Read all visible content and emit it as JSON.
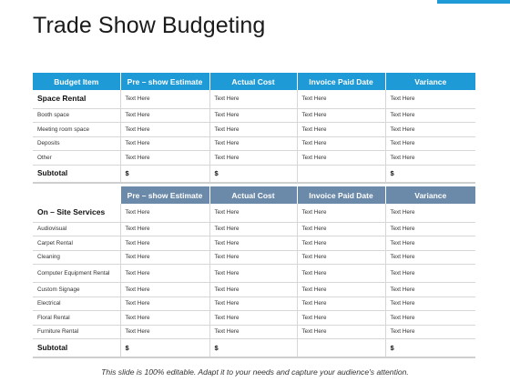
{
  "title": "Trade Show Budgeting",
  "colors": {
    "accent": "#1e9ad6",
    "header_secondary": "#6b89a8"
  },
  "table1": {
    "headers": [
      "Budget Item",
      "Pre – show Estimate",
      "Actual Cost",
      "Invoice Paid Date",
      "Variance"
    ],
    "section": "Space Rental",
    "section_cells": [
      "Text Here",
      "Text Here",
      "Text Here",
      "Text Here"
    ],
    "rows": [
      {
        "label": "Booth space",
        "cells": [
          "Text Here",
          "Text Here",
          "Text Here",
          "Text Here"
        ]
      },
      {
        "label": "Meeting room space",
        "cells": [
          "Text Here",
          "Text Here",
          "Text Here",
          "Text Here"
        ]
      },
      {
        "label": "Deposits",
        "cells": [
          "Text Here",
          "Text Here",
          "Text Here",
          "Text Here"
        ]
      },
      {
        "label": "Other",
        "cells": [
          "Text Here",
          "Text Here",
          "Text Here",
          "Text Here"
        ]
      }
    ],
    "subtotal": {
      "label": "Subtotal",
      "cells": [
        "$",
        "$",
        "",
        "$"
      ]
    }
  },
  "table2": {
    "headers": [
      "Pre – show Estimate",
      "Actual Cost",
      "Invoice Paid Date",
      "Variance"
    ],
    "section": "On – Site Services",
    "section_cells": [
      "Text Here",
      "Text Here",
      "Text Here",
      "Text Here"
    ],
    "rows": [
      {
        "label": "Audiovisual",
        "cells": [
          "Text Here",
          "Text Here",
          "Text Here",
          "Text Here"
        ]
      },
      {
        "label": "Carpet Rental",
        "cells": [
          "Text Here",
          "Text Here",
          "Text Here",
          "Text Here"
        ]
      },
      {
        "label": "Cleaning",
        "cells": [
          "Text Here",
          "Text Here",
          "Text Here",
          "Text Here"
        ]
      },
      {
        "label": "Computer Equipment Rental",
        "cells": [
          "Text Here",
          "Text Here",
          "Text Here",
          "Text Here"
        ]
      },
      {
        "label": "Custom Signage",
        "cells": [
          "Text Here",
          "Text Here",
          "Text Here",
          "Text Here"
        ]
      },
      {
        "label": "Electrical",
        "cells": [
          "Text Here",
          "Text Here",
          "Text Here",
          "Text Here"
        ]
      },
      {
        "label": "Floral Rental",
        "cells": [
          "Text Here",
          "Text Here",
          "Text Here",
          "Text Here"
        ]
      },
      {
        "label": "Furniture Rental",
        "cells": [
          "Text Here",
          "Text Here",
          "Text Here",
          "Text Here"
        ]
      }
    ],
    "subtotal": {
      "label": "Subtotal",
      "cells": [
        "$",
        "$",
        "",
        "$"
      ]
    }
  },
  "footer": "This slide is 100% editable. Adapt it to your needs and capture your audience's attention."
}
